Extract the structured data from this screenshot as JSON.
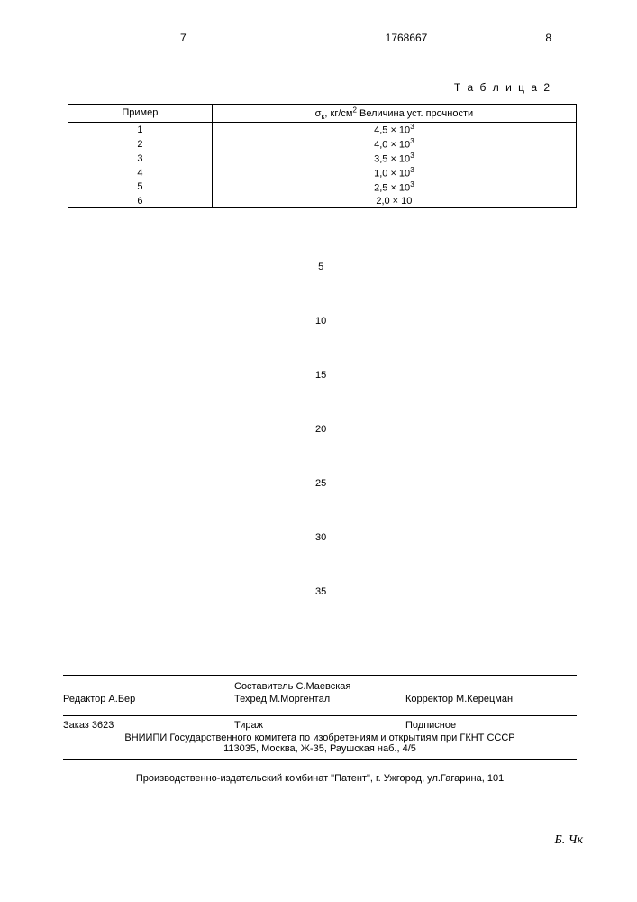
{
  "header": {
    "page_left": "7",
    "doc_number": "1768667",
    "page_right": "8"
  },
  "table": {
    "title": "Т а б л и ц а 2",
    "columns": [
      "Пример",
      "σк, кг/см² Величина уст. прочности"
    ],
    "rows": [
      [
        "1",
        "4,5 × 10³"
      ],
      [
        "2",
        "4,0 × 10³"
      ],
      [
        "3",
        "3,5 × 10³"
      ],
      [
        "4",
        "1,0 × 10³"
      ],
      [
        "5",
        "2,5 × 10³"
      ],
      [
        "6",
        "2,0 × 10"
      ]
    ]
  },
  "line_numbers": [
    "5",
    "10",
    "15",
    "20",
    "25",
    "30",
    "35"
  ],
  "credits": {
    "editor_label": "Редактор",
    "editor_name": "А.Бер",
    "compiler_label": "Составитель",
    "compiler_name": "С.Маевская",
    "techred_label": "Техред",
    "techred_name": "М.Моргентал",
    "corrector_label": "Корректор",
    "corrector_name": "М.Керецман"
  },
  "order": {
    "order_label": "Заказ",
    "order_number": "3623",
    "tirage_label": "Тираж",
    "subscription": "Подписное"
  },
  "org": {
    "line1": "ВНИИПИ Государственного комитета по изобретениям и открытиям при ГКНТ СССР",
    "line2": "113035, Москва, Ж-35, Раушская наб., 4/5"
  },
  "printer": "Производственно-издательский комбинат \"Патент\", г. Ужгород, ул.Гагарина, 101",
  "annotation": "Б. Чк",
  "styles": {
    "background_color": "#ffffff",
    "text_color": "#000000",
    "table_border_color": "#000000",
    "font_size_body": 11,
    "font_size_header": 12
  }
}
